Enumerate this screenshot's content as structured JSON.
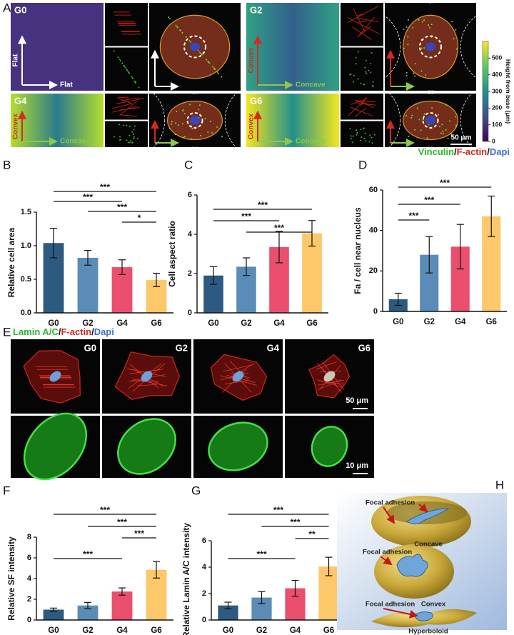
{
  "panel_a": {
    "letter": "A",
    "tiles": [
      {
        "label": "G0",
        "x_axis": "Flat",
        "y_axis": "Flat"
      },
      {
        "label": "G2",
        "x_axis": "Concave",
        "y_axis": "Convex"
      },
      {
        "label": "G4",
        "x_axis": "Concave",
        "y_axis": "Convex"
      },
      {
        "label": "G6",
        "x_axis": "Concave",
        "y_axis": "Convex"
      }
    ],
    "scale_bar": "50 μm",
    "stain": [
      "Vinculin",
      "/",
      "F-actin",
      "/",
      "Dapi"
    ],
    "colorbar": {
      "label": "Height from base (μm)",
      "lim": [
        0,
        600
      ],
      "ticks": [
        0,
        100,
        200,
        300,
        400,
        500
      ]
    }
  },
  "chart_data": [
    {
      "type": "bar",
      "letter": "B",
      "y_label": "Relative cell area",
      "categories": [
        "G0",
        "G2",
        "G4",
        "G6"
      ],
      "values": [
        1.04,
        0.82,
        0.68,
        0.49
      ],
      "errors": [
        0.22,
        0.11,
        0.11,
        0.1
      ],
      "colors": [
        "#2d5a80",
        "#5b8cb7",
        "#ea4f6e",
        "#fcc86a"
      ],
      "ylim": [
        0,
        1.5
      ],
      "yticks": [
        {
          "value": 0,
          "label": "0.0"
        },
        0.5,
        {
          "value": 1,
          "label": "1.0"
        },
        1.5
      ],
      "significance": [
        {
          "pair": [
            0,
            3
          ],
          "label": "***"
        },
        {
          "pair": [
            0,
            2
          ],
          "label": "***"
        },
        {
          "pair": [
            1,
            3
          ],
          "label": "***"
        },
        {
          "pair": [
            2,
            3
          ],
          "label": "*"
        }
      ]
    },
    {
      "type": "bar",
      "letter": "C",
      "y_label": "Cell aspect ratio",
      "categories": [
        "G0",
        "G2",
        "G4",
        "G6"
      ],
      "values": [
        1.9,
        2.35,
        3.35,
        4.05
      ],
      "errors": [
        0.45,
        0.45,
        0.8,
        0.65
      ],
      "colors": [
        "#2d5a80",
        "#5b8cb7",
        "#ea4f6e",
        "#fcc86a"
      ],
      "ylim": [
        0,
        6
      ],
      "yticks": [
        0,
        2,
        4,
        6
      ],
      "significance": [
        {
          "pair": [
            0,
            3
          ],
          "label": "***"
        },
        {
          "pair": [
            0,
            2
          ],
          "label": "***"
        },
        {
          "pair": [
            1,
            3
          ],
          "label": "***"
        }
      ]
    },
    {
      "type": "bar",
      "letter": "D",
      "y_label": "Fa / cell near nucleus",
      "categories": [
        "G0",
        "G2",
        "G4",
        "G6"
      ],
      "values": [
        6,
        28,
        32,
        47
      ],
      "errors": [
        3,
        9,
        11,
        10
      ],
      "colors": [
        "#2d5a80",
        "#5b8cb7",
        "#ea4f6e",
        "#fcc86a"
      ],
      "ylim": [
        0,
        60
      ],
      "yticks": [
        0,
        20,
        40,
        60
      ],
      "significance": [
        {
          "pair": [
            0,
            3
          ],
          "label": "***"
        },
        {
          "pair": [
            0,
            2
          ],
          "label": "***"
        },
        {
          "pair": [
            0,
            1
          ],
          "label": "***"
        }
      ]
    },
    {
      "type": "bar",
      "letter": "F",
      "y_label": "Relative SF intensity",
      "categories": [
        "G0",
        "G2",
        "G4",
        "G6"
      ],
      "values": [
        1.0,
        1.4,
        2.75,
        4.85
      ],
      "errors": [
        0.15,
        0.3,
        0.35,
        0.8
      ],
      "colors": [
        "#2d5a80",
        "#5b8cb7",
        "#ea4f6e",
        "#fcc86a"
      ],
      "ylim": [
        0,
        8
      ],
      "yticks": [
        0,
        2,
        4,
        6,
        8
      ],
      "significance": [
        {
          "pair": [
            0,
            3
          ],
          "label": "***"
        },
        {
          "pair": [
            1,
            3
          ],
          "label": "***"
        },
        {
          "pair": [
            2,
            3
          ],
          "label": "***"
        },
        {
          "pair": [
            0,
            2
          ],
          "label": "***"
        }
      ]
    },
    {
      "type": "bar",
      "letter": "G",
      "y_label": "Relative Lamin A/C intensity",
      "categories": [
        "G0",
        "G2",
        "G4",
        "G6"
      ],
      "values": [
        1.1,
        1.7,
        2.4,
        4.05
      ],
      "errors": [
        0.25,
        0.45,
        0.6,
        0.7
      ],
      "colors": [
        "#2d5a80",
        "#5b8cb7",
        "#ea4f6e",
        "#fcc86a"
      ],
      "ylim": [
        0,
        6
      ],
      "yticks": [
        0,
        2,
        4,
        6
      ],
      "significance": [
        {
          "pair": [
            0,
            3
          ],
          "label": "***"
        },
        {
          "pair": [
            1,
            3
          ],
          "label": "***"
        },
        {
          "pair": [
            2,
            3
          ],
          "label": "**"
        },
        {
          "pair": [
            0,
            2
          ],
          "label": "***"
        }
      ]
    }
  ],
  "panel_e": {
    "letter": "E",
    "stain": [
      "Lamin A/C",
      "/",
      "F-actin",
      "/",
      "Dapi"
    ],
    "labels": [
      "G0",
      "G2",
      "G4",
      "G6"
    ],
    "scale_bars": [
      "50 μm",
      "10 μm"
    ]
  },
  "panel_h": {
    "letter": "H",
    "callouts": [
      "Focal adhesion",
      "Focal adhesion",
      "Focal adhesion"
    ],
    "shapes": [
      "Concave",
      "Convex",
      "Hyperboloid"
    ]
  }
}
